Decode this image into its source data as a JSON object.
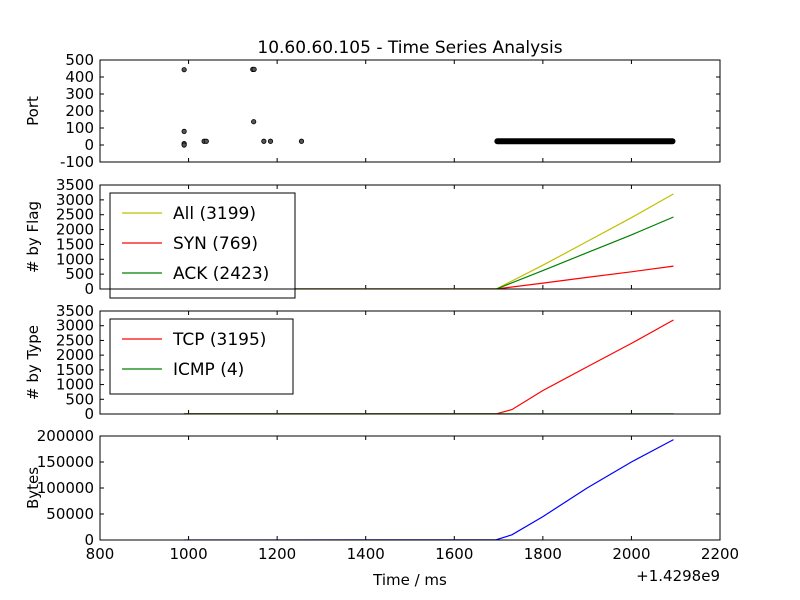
{
  "title": "10.60.60.105 - Time Series Analysis",
  "xlabel": "Time / ms",
  "x_offset_label": "+1.4298e9",
  "xlim": [
    800,
    2200
  ],
  "x_ticks": [
    800,
    1000,
    1200,
    1400,
    1600,
    1800,
    2000,
    2200
  ],
  "chart_data": [
    {
      "type": "scatter",
      "ylabel": "Port",
      "ylim": [
        -100,
        500
      ],
      "y_ticks": [
        -100,
        0,
        100,
        200,
        300,
        400,
        500
      ],
      "series": [
        {
          "color": "#000000",
          "points": [
            [
              990,
              443
            ],
            [
              990,
              80
            ],
            [
              990,
              8
            ],
            [
              990,
              0
            ],
            [
              1035,
              22
            ],
            [
              1040,
              22
            ],
            [
              1145,
              445
            ],
            [
              1148,
              445
            ],
            [
              1147,
              137
            ],
            [
              1170,
              22
            ],
            [
              1185,
              22
            ],
            [
              1255,
              22
            ]
          ],
          "dense_band": {
            "x_start": 1695,
            "x_end": 2095,
            "y": 22
          }
        }
      ]
    },
    {
      "type": "line",
      "ylabel": "# by Flag",
      "ylim": [
        0,
        3500
      ],
      "y_ticks": [
        0,
        500,
        1000,
        1500,
        2000,
        2500,
        3000,
        3500
      ],
      "legend_position": "top-left",
      "series": [
        {
          "name": "All (3199)",
          "color": "#bfbf00",
          "x": [
            1000,
            1695,
            1800,
            1900,
            2000,
            2095
          ],
          "y": [
            0,
            2,
            800,
            1600,
            2400,
            3199
          ]
        },
        {
          "name": "SYN (769)",
          "color": "#ff0000",
          "x": [
            1000,
            1695,
            1800,
            1900,
            2000,
            2095
          ],
          "y": [
            0,
            1,
            200,
            390,
            580,
            769
          ]
        },
        {
          "name": "ACK (2423)",
          "color": "#008000",
          "x": [
            1000,
            1695,
            1800,
            1900,
            2000,
            2095
          ],
          "y": [
            0,
            1,
            620,
            1220,
            1820,
            2423
          ]
        }
      ]
    },
    {
      "type": "line",
      "ylabel": "# by Type",
      "ylim": [
        0,
        3500
      ],
      "y_ticks": [
        0,
        500,
        1000,
        1500,
        2000,
        2500,
        3000,
        3500
      ],
      "legend_position": "top-left",
      "series": [
        {
          "name": "TCP (3195)",
          "color": "#ff0000",
          "x": [
            990,
            1695,
            1730,
            1800,
            1900,
            2000,
            2095
          ],
          "y": [
            4,
            8,
            150,
            800,
            1600,
            2400,
            3195
          ]
        },
        {
          "name": "ICMP (4)",
          "color": "#008000",
          "x": [
            990,
            2095
          ],
          "y": [
            4,
            4
          ]
        }
      ]
    },
    {
      "type": "line",
      "ylabel": "Bytes",
      "ylim": [
        0,
        200000
      ],
      "y_ticks": [
        0,
        50000,
        100000,
        150000,
        200000
      ],
      "series": [
        {
          "color": "#0000ff",
          "x": [
            990,
            1695,
            1730,
            1800,
            1900,
            2000,
            2095
          ],
          "y": [
            0,
            500,
            10000,
            45000,
            100000,
            150000,
            193000
          ]
        }
      ]
    }
  ]
}
